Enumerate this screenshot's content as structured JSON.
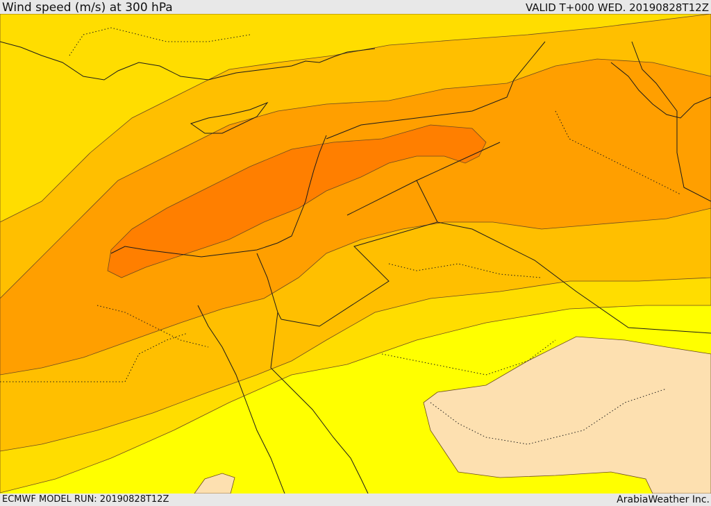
{
  "header": {
    "title": "Wind speed (m/s) at 300 hPa",
    "valid": "VALID T+000 WED. 20190828T12Z"
  },
  "footer": {
    "model_run": "ECMWF MODEL RUN: 20190828T12Z",
    "credit": "ArabiaWeather Inc."
  },
  "map": {
    "variable": "wind speed",
    "units": "m/s",
    "level": "300 hPa",
    "colors": {
      "calm": "#fde0b0",
      "band1": "#ffff00",
      "band2": "#ffdd00",
      "band3": "#ffbf00",
      "band4": "#ff9f00",
      "band5": "#ff7f00"
    }
  }
}
